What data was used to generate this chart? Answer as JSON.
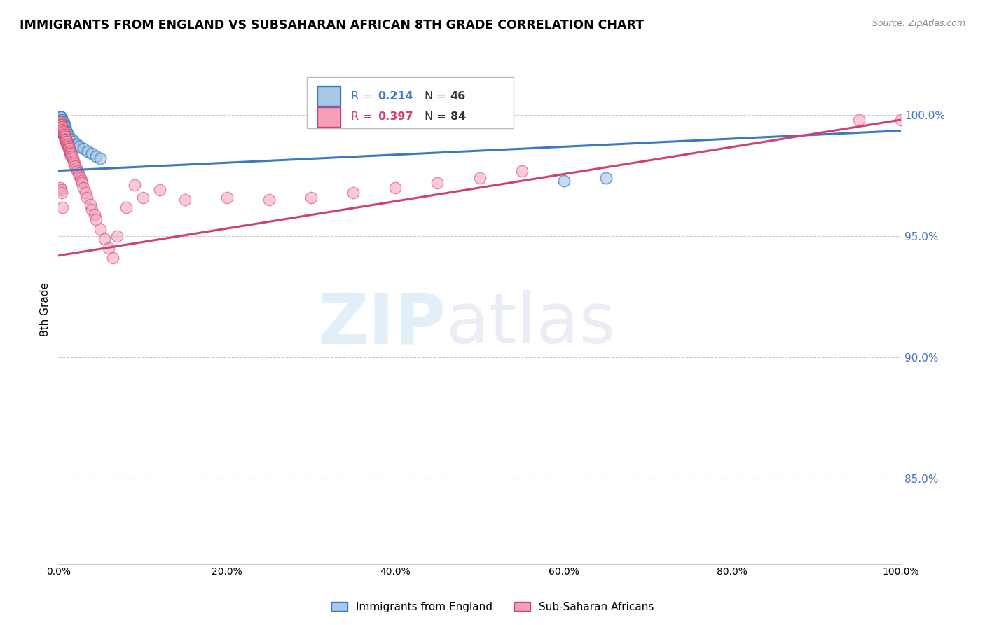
{
  "title": "IMMIGRANTS FROM ENGLAND VS SUBSAHARAN AFRICAN 8TH GRADE CORRELATION CHART",
  "source": "Source: ZipAtlas.com",
  "ylabel": "8th Grade",
  "blue_color": "#a8c8e8",
  "pink_color": "#f4a0b8",
  "blue_line_color": "#3a7abf",
  "pink_line_color": "#d04070",
  "legend_blue_r": "0.214",
  "legend_blue_n": "46",
  "legend_pink_r": "0.397",
  "legend_pink_n": "84",
  "blue_legend_label": "Immigrants from England",
  "pink_legend_label": "Sub-Saharan Africans",
  "watermark_zip": "ZIP",
  "watermark_atlas": "atlas",
  "right_ytick_vals": [
    0.85,
    0.9,
    0.95,
    1.0
  ],
  "right_ytick_labels": [
    "85.0%",
    "90.0%",
    "95.0%",
    "100.0%"
  ],
  "x_tick_vals": [
    0.0,
    0.2,
    0.4,
    0.6,
    0.8,
    1.0
  ],
  "x_tick_labels": [
    "0.0%",
    "20.0%",
    "40.0%",
    "60.0%",
    "80.0%",
    "100.0%"
  ],
  "ylim": [
    0.815,
    1.025
  ],
  "xlim": [
    0.0,
    1.0
  ],
  "blue_trendline": [
    0.0,
    1.0,
    0.977,
    0.9935
  ],
  "pink_trendline": [
    0.0,
    1.0,
    0.942,
    0.998
  ],
  "blue_x": [
    0.001,
    0.002,
    0.002,
    0.002,
    0.003,
    0.003,
    0.003,
    0.003,
    0.003,
    0.004,
    0.004,
    0.004,
    0.004,
    0.005,
    0.005,
    0.005,
    0.005,
    0.005,
    0.006,
    0.006,
    0.006,
    0.007,
    0.007,
    0.007,
    0.008,
    0.008,
    0.009,
    0.009,
    0.01,
    0.011,
    0.012,
    0.012,
    0.013,
    0.015,
    0.016,
    0.018,
    0.02,
    0.022,
    0.025,
    0.03,
    0.035,
    0.04,
    0.045,
    0.05,
    0.6,
    0.65
  ],
  "blue_y": [
    0.993,
    0.997,
    0.998,
    0.999,
    0.998,
    0.998,
    0.999,
    0.999,
    0.999,
    0.998,
    0.998,
    0.997,
    0.997,
    0.997,
    0.997,
    0.997,
    0.997,
    0.997,
    0.997,
    0.996,
    0.996,
    0.996,
    0.995,
    0.995,
    0.995,
    0.994,
    0.993,
    0.993,
    0.993,
    0.992,
    0.991,
    0.99,
    0.99,
    0.99,
    0.99,
    0.989,
    0.988,
    0.988,
    0.987,
    0.986,
    0.985,
    0.984,
    0.983,
    0.982,
    0.973,
    0.974
  ],
  "pink_x": [
    0.001,
    0.001,
    0.002,
    0.002,
    0.002,
    0.003,
    0.003,
    0.003,
    0.003,
    0.004,
    0.004,
    0.004,
    0.005,
    0.005,
    0.005,
    0.005,
    0.005,
    0.005,
    0.006,
    0.006,
    0.006,
    0.007,
    0.007,
    0.007,
    0.008,
    0.008,
    0.008,
    0.009,
    0.009,
    0.01,
    0.01,
    0.011,
    0.011,
    0.012,
    0.012,
    0.013,
    0.013,
    0.014,
    0.014,
    0.015,
    0.015,
    0.016,
    0.017,
    0.018,
    0.019,
    0.02,
    0.021,
    0.022,
    0.024,
    0.025,
    0.026,
    0.027,
    0.028,
    0.03,
    0.032,
    0.034,
    0.038,
    0.04,
    0.043,
    0.045,
    0.05,
    0.055,
    0.06,
    0.065,
    0.07,
    0.08,
    0.09,
    0.1,
    0.12,
    0.15,
    0.2,
    0.25,
    0.3,
    0.35,
    0.4,
    0.45,
    0.5,
    0.55,
    0.95,
    1.0,
    0.002,
    0.003,
    0.004,
    0.005
  ],
  "pink_y": [
    0.996,
    0.997,
    0.996,
    0.996,
    0.997,
    0.995,
    0.996,
    0.996,
    0.996,
    0.995,
    0.994,
    0.995,
    0.994,
    0.993,
    0.993,
    0.993,
    0.993,
    0.994,
    0.993,
    0.992,
    0.992,
    0.991,
    0.991,
    0.992,
    0.991,
    0.99,
    0.99,
    0.99,
    0.989,
    0.989,
    0.988,
    0.988,
    0.987,
    0.987,
    0.986,
    0.986,
    0.985,
    0.985,
    0.984,
    0.984,
    0.983,
    0.983,
    0.982,
    0.981,
    0.98,
    0.979,
    0.978,
    0.977,
    0.976,
    0.975,
    0.974,
    0.973,
    0.972,
    0.97,
    0.968,
    0.966,
    0.963,
    0.961,
    0.959,
    0.957,
    0.953,
    0.949,
    0.945,
    0.941,
    0.95,
    0.962,
    0.971,
    0.966,
    0.969,
    0.965,
    0.966,
    0.965,
    0.966,
    0.968,
    0.97,
    0.972,
    0.974,
    0.977,
    0.998,
    0.998,
    0.97,
    0.969,
    0.968,
    0.962
  ]
}
